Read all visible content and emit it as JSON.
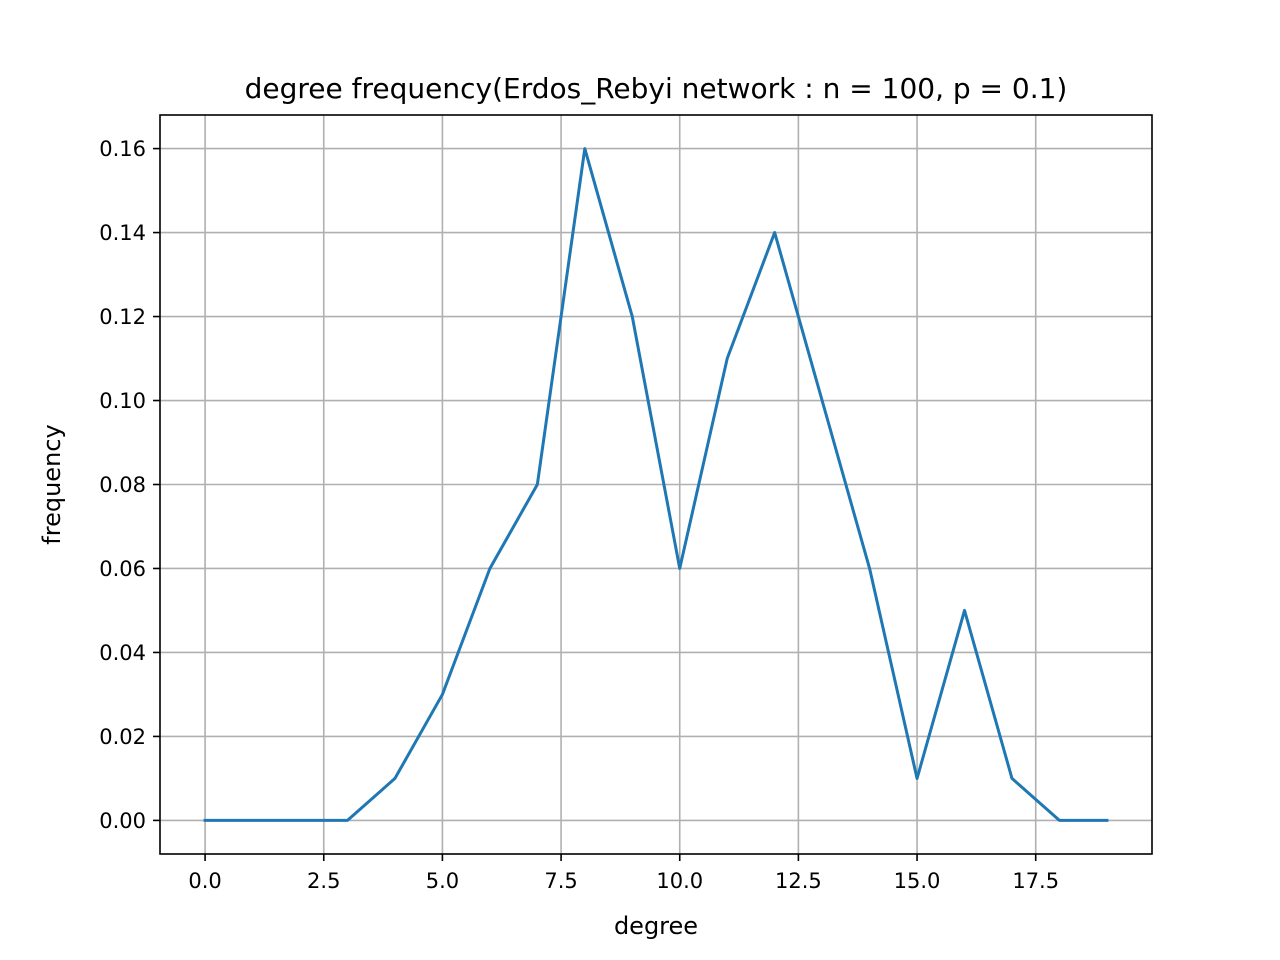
{
  "chart_data": {
    "type": "line",
    "title": "degree frequency(Erdos_Rebyi network : n = 100, p = 0.1)",
    "xlabel": "degree",
    "ylabel": "frequency",
    "xlim": [
      -0.95,
      19.95
    ],
    "ylim": [
      -0.008,
      0.168
    ],
    "xticks": [
      0.0,
      2.5,
      5.0,
      7.5,
      10.0,
      12.5,
      15.0,
      17.5
    ],
    "xtick_labels": [
      "0.0",
      "2.5",
      "5.0",
      "7.5",
      "10.0",
      "12.5",
      "15.0",
      "17.5"
    ],
    "yticks": [
      0.0,
      0.02,
      0.04,
      0.06,
      0.08,
      0.1,
      0.12,
      0.14,
      0.16
    ],
    "ytick_labels": [
      "0.00",
      "0.02",
      "0.04",
      "0.06",
      "0.08",
      "0.10",
      "0.12",
      "0.14",
      "0.16"
    ],
    "grid": true,
    "series": [
      {
        "color": "#1f77b4",
        "x": [
          0,
          1,
          2,
          3,
          4,
          5,
          6,
          7,
          8,
          9,
          10,
          11,
          12,
          13,
          14,
          15,
          16,
          17,
          18,
          19
        ],
        "y": [
          0.0,
          0.0,
          0.0,
          0.0,
          0.01,
          0.03,
          0.06,
          0.08,
          0.16,
          0.12,
          0.06,
          0.11,
          0.14,
          0.1,
          0.06,
          0.01,
          0.05,
          0.01,
          0.0,
          0.0
        ]
      }
    ]
  }
}
